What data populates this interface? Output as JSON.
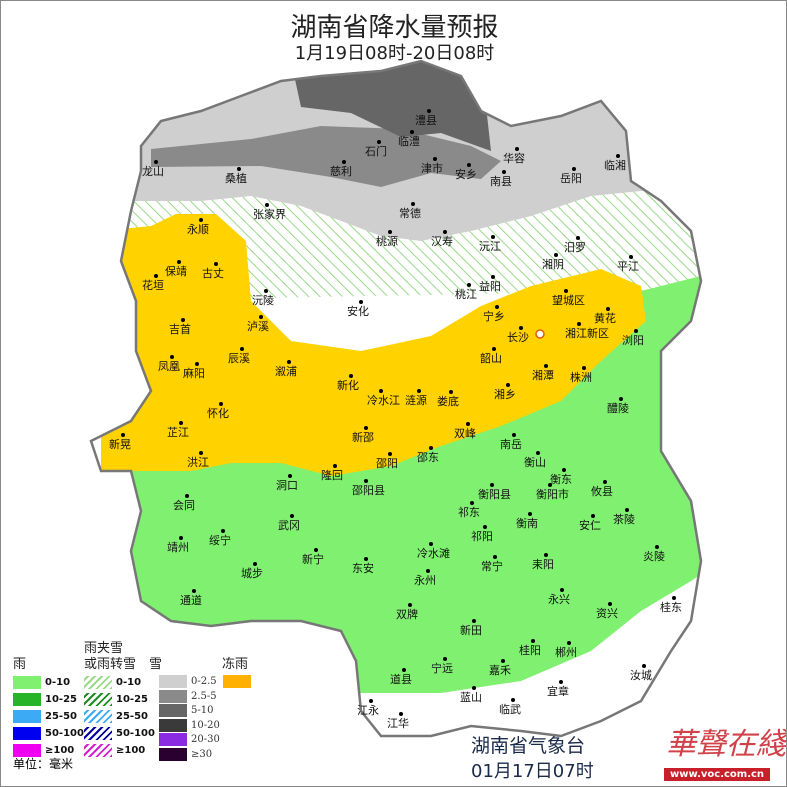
{
  "title": "湖南省降水量预报",
  "subtitle": "1月19日08时-20日08时",
  "colors": {
    "rain_0_10": "#7fef6f",
    "freezing_rain": "#ffd200",
    "snow_0_2_5": "#cfcfcf",
    "snow_2_5_5": "#8a8a8a",
    "snow_5_10": "#666666",
    "mixed_0_10_hatch": "#9ad98a"
  },
  "cities": [
    "澧县",
    "临澧",
    "石门",
    "津市",
    "安乡",
    "慈利",
    "华容",
    "南县",
    "岳阳",
    "临湘",
    "龙山",
    "桑植",
    "张家界",
    "常德",
    "桃源",
    "汉寿",
    "沅江",
    "汨罗",
    "湘阴",
    "平江",
    "永顺",
    "保靖",
    "古丈",
    "花垣",
    "沅陵",
    "桃江",
    "益阳",
    "安化",
    "望城区",
    "宁乡",
    "黄花",
    "长沙",
    "湘江新区",
    "浏阳",
    "吉首",
    "泸溪",
    "凤凰",
    "麻阳",
    "辰溪",
    "溆浦",
    "韶山",
    "湘潭",
    "株洲",
    "新化",
    "冷水江",
    "涟源",
    "娄底",
    "湘乡",
    "醴陵",
    "怀化",
    "芷江",
    "新晃",
    "双峰",
    "新邵",
    "邵阳",
    "邵东",
    "南岳",
    "衡山",
    "衡东",
    "洪江",
    "隆回",
    "邵阳县",
    "衡阳县",
    "衡阳市",
    "攸县",
    "洞口",
    "会同",
    "祁东",
    "衡南",
    "安仁",
    "茶陵",
    "绥宁",
    "武冈",
    "祁阳",
    "冷水滩",
    "靖州",
    "新宁",
    "常宁",
    "耒阳",
    "炎陵",
    "城步",
    "东安",
    "永州",
    "通道",
    "永兴",
    "资兴",
    "桂东",
    "双牌",
    "新田",
    "桂阳",
    "郴州",
    "宁远",
    "嘉禾",
    "道县",
    "汝城",
    "蓝山",
    "临武",
    "宜章",
    "江永",
    "江华"
  ],
  "legend": {
    "rain_title": "雨",
    "mixed_title_1": "雨夹雪",
    "mixed_title_2": "或雨转雪",
    "snow_title": "雪",
    "freezing_title": "冻雨",
    "rain_items": [
      {
        "label": "0-10",
        "color": "#80f070"
      },
      {
        "label": "10-25",
        "color": "#28b428"
      },
      {
        "label": "25-50",
        "color": "#3caaf5"
      },
      {
        "label": "50-100",
        "color": "#0000f0"
      },
      {
        "label": "≥100",
        "color": "#f000f0"
      }
    ],
    "mixed_items": [
      {
        "label": "0-10",
        "color": "#9ad98a"
      },
      {
        "label": "10-25",
        "color": "#1e8c1e"
      },
      {
        "label": "25-50",
        "color": "#3caaf5"
      },
      {
        "label": "50-100",
        "color": "#0000a0"
      },
      {
        "label": "≥100",
        "color": "#d020d0"
      }
    ],
    "snow_items": [
      {
        "label": "0-2.5",
        "color": "#cfcfcf"
      },
      {
        "label": "2.5-5",
        "color": "#8a8a8a"
      },
      {
        "label": "5-10",
        "color": "#666666"
      },
      {
        "label": "10-20",
        "color": "#3a3a3a"
      },
      {
        "label": "20-30",
        "color": "#8a2be2"
      },
      {
        "label": "≥30",
        "color": "#2a0030"
      }
    ],
    "freezing_color": "#ffb000",
    "unit": "单位：毫米"
  },
  "footer": {
    "agency": "湖南省气象台",
    "issued": "01月17日07时"
  },
  "watermark": {
    "text": "华声在线",
    "url": "www.voc.com.cn"
  }
}
